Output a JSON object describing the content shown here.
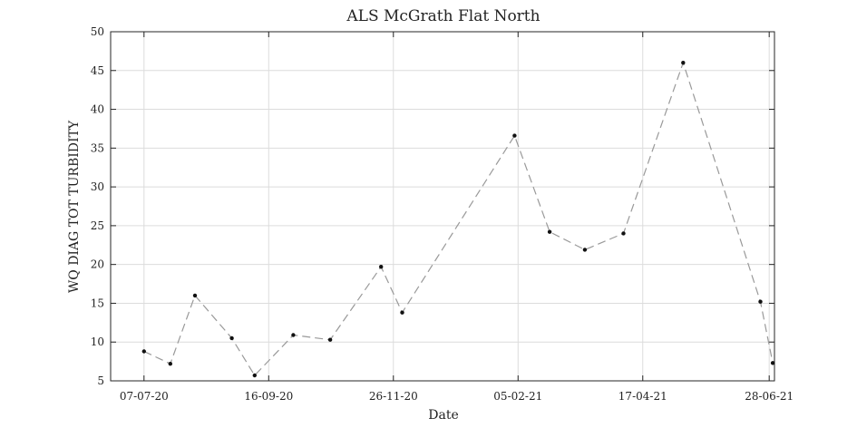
{
  "chart_data": {
    "type": "line",
    "title": "ALS McGrath Flat North",
    "xlabel": "Date",
    "ylabel": "WQ DIAG TOT TURBIDITY",
    "ylim": [
      5,
      50
    ],
    "yticks": [
      "5",
      "10",
      "15",
      "20",
      "25",
      "30",
      "35",
      "40",
      "45",
      "50"
    ],
    "xticks": [
      "07-07-20",
      "16-09-20",
      "26-11-20",
      "05-02-21",
      "17-04-21",
      "28-06-21"
    ],
    "xlim": [
      "2020-06-18",
      "2021-07-01"
    ],
    "grid": true,
    "line_style": "dashed",
    "line_color": "#999999",
    "marker_color": "#111111",
    "x": [
      "2020-07-07",
      "2020-07-22",
      "2020-08-05",
      "2020-08-26",
      "2020-09-08",
      "2020-09-30",
      "2020-10-21",
      "2020-11-19",
      "2020-12-01",
      "2021-02-03",
      "2021-02-23",
      "2021-03-15",
      "2021-04-06",
      "2021-05-10",
      "2021-06-23",
      "2021-06-30"
    ],
    "values": [
      8.8,
      7.2,
      16.0,
      10.5,
      5.7,
      10.9,
      10.3,
      19.7,
      13.8,
      36.6,
      24.2,
      21.9,
      24.0,
      46.0,
      15.2,
      7.3
    ]
  }
}
